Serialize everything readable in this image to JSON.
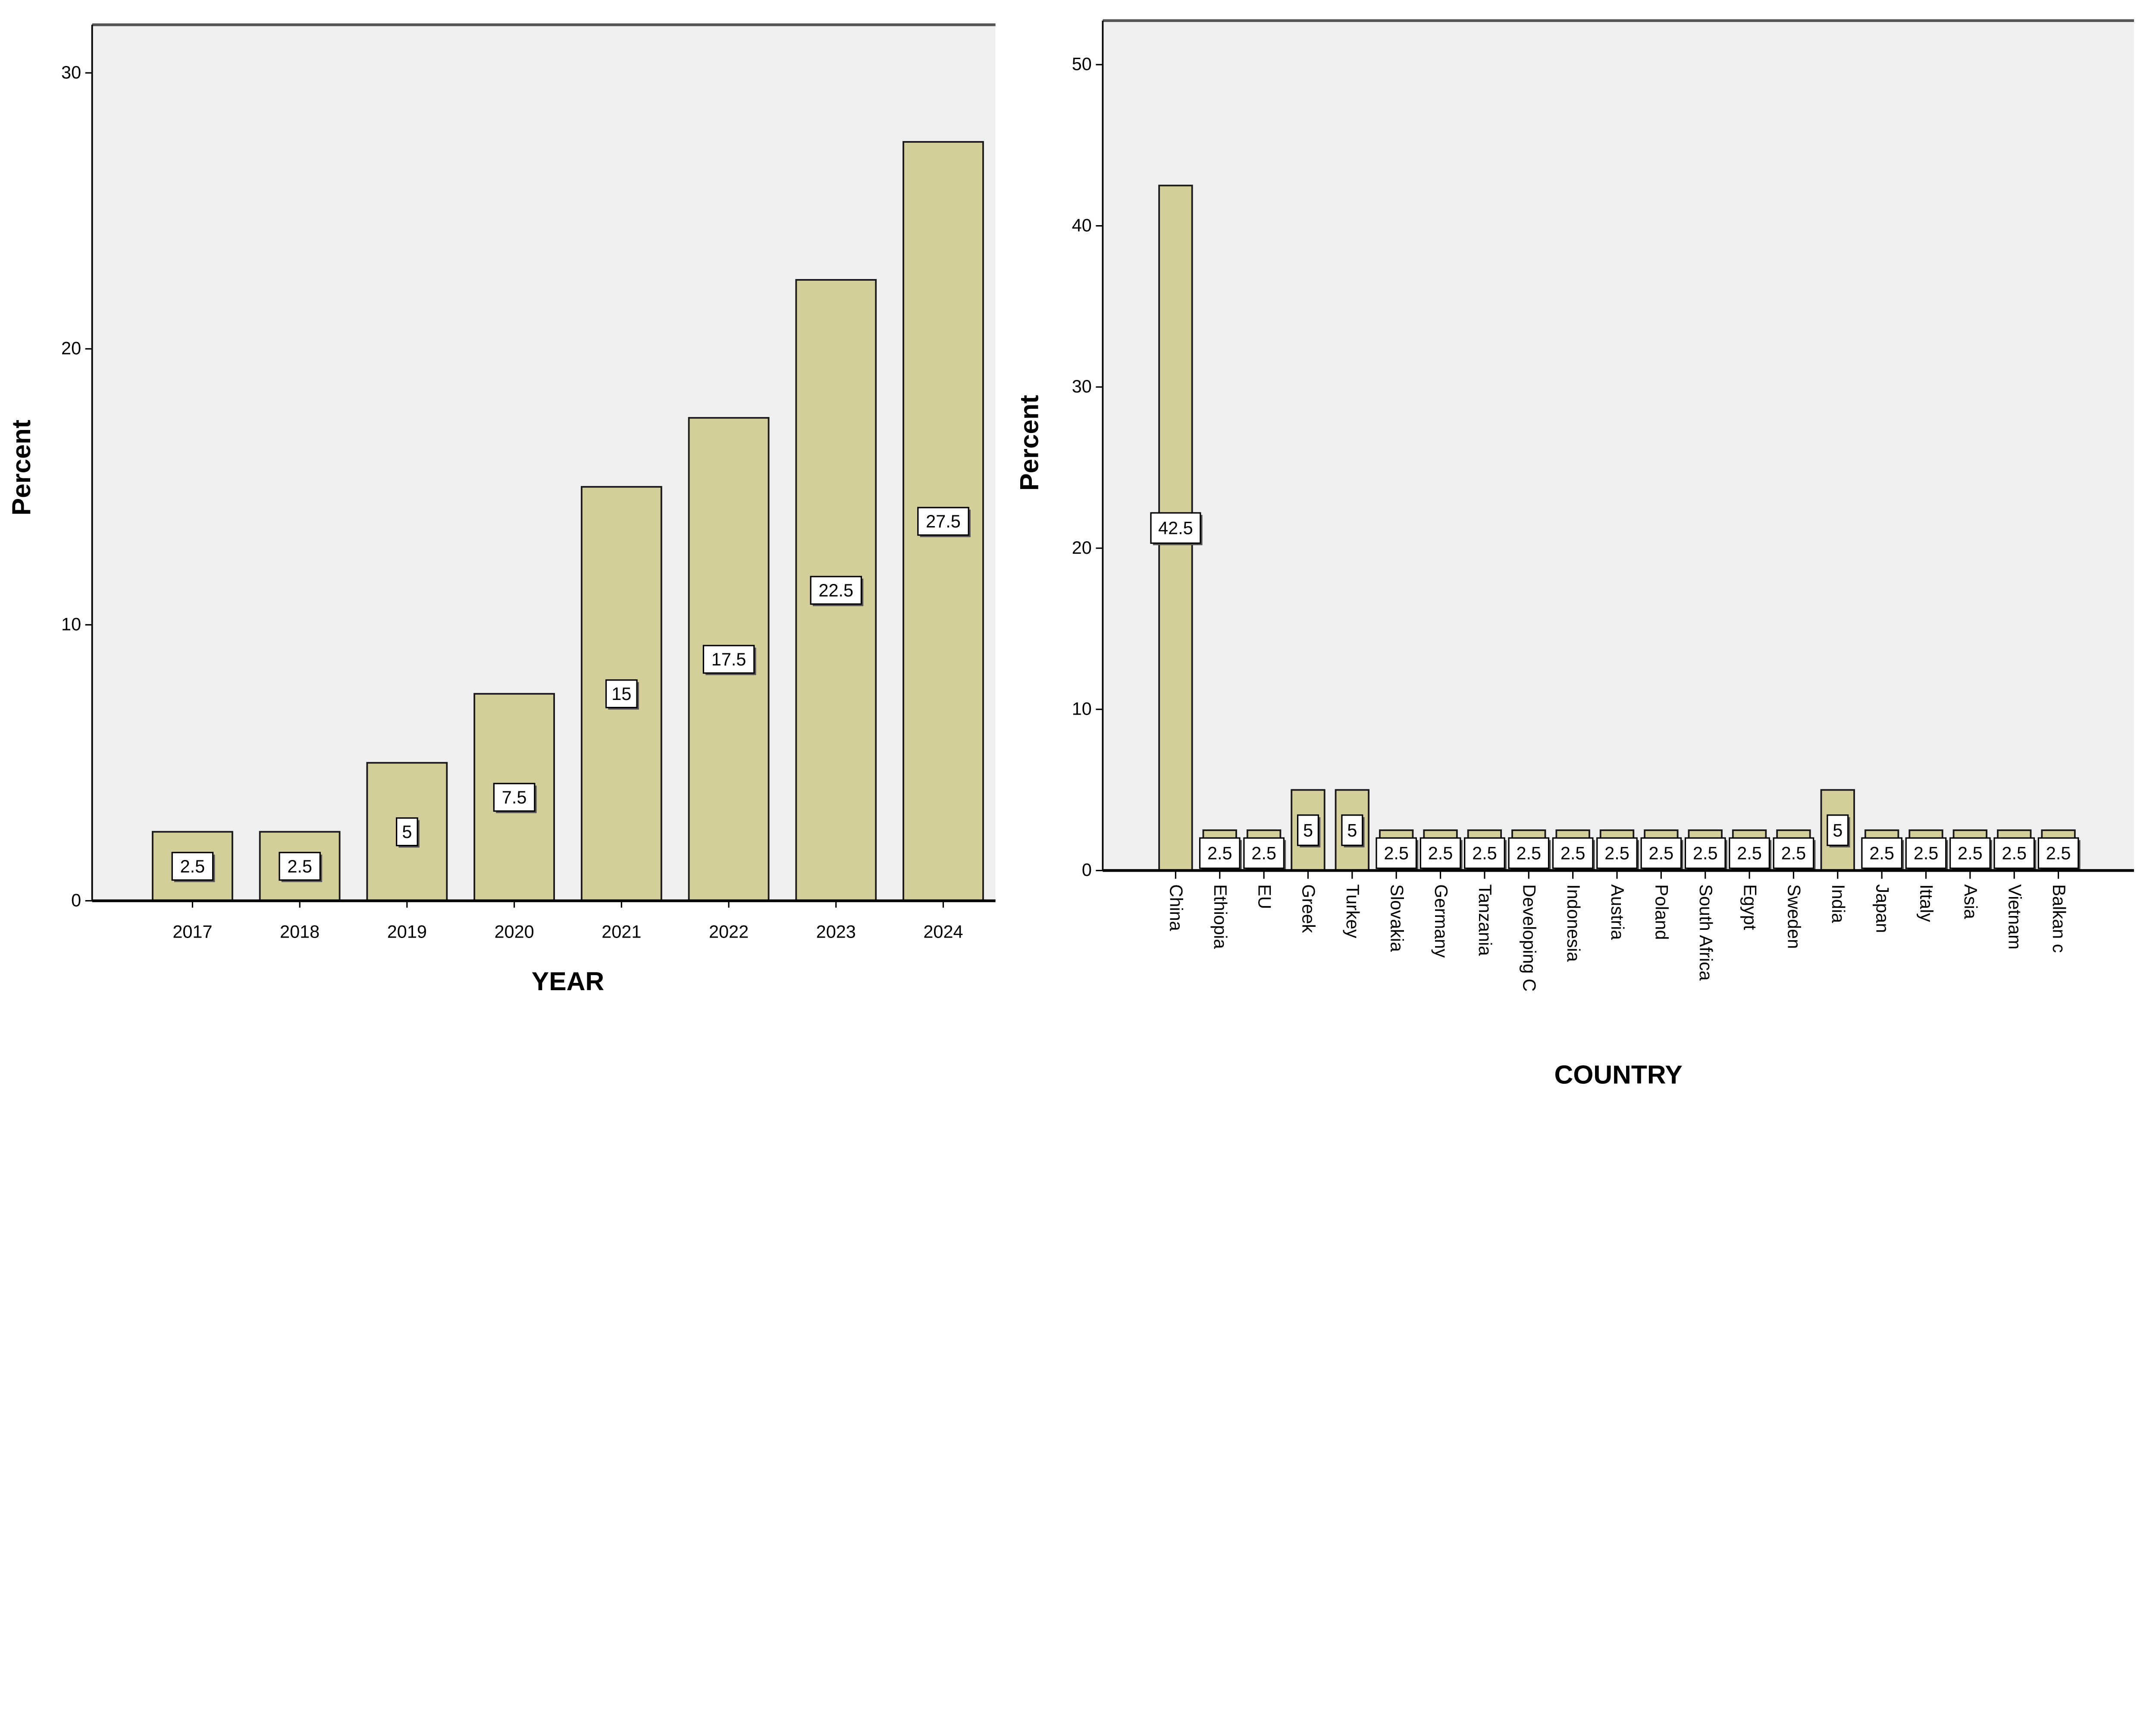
{
  "colors": {
    "bar": "#d3ce9a",
    "plot_background": "#f0f0f0",
    "bar_outline": "#1a1a1a"
  },
  "chart_data": [
    {
      "type": "bar",
      "xlabel": "YEAR",
      "ylabel": "Percent",
      "ylim": [
        0,
        30
      ],
      "yticks": [
        "0",
        "10",
        "20",
        "30"
      ],
      "categories": [
        "2017",
        "2018",
        "2019",
        "2020",
        "2021",
        "2022",
        "2023",
        "2024"
      ],
      "values": [
        2.5,
        2.5,
        5,
        7.5,
        15,
        17.5,
        22.5,
        27.5
      ],
      "data_labels": [
        "2.5",
        "2.5",
        "5",
        "7.5",
        "15",
        "17.5",
        "22.5",
        "27.5"
      ],
      "grid": false
    },
    {
      "type": "bar",
      "xlabel": "COUNTRY",
      "ylabel": "Percent",
      "ylim": [
        0,
        50
      ],
      "yticks": [
        "0",
        "10",
        "20",
        "30",
        "40",
        "50"
      ],
      "categories": [
        "China",
        "Ethiopia",
        "EU",
        "Greek",
        "Turkey",
        "Slovakia",
        "Germany",
        "Tanzania",
        "Developing C",
        "Indonesia",
        "Austria",
        "Poland",
        "South Africa",
        "Egypt",
        "Sweden",
        "India",
        "Japan",
        "Ittaly",
        "Asia",
        "Vietnam",
        "Balkan c"
      ],
      "values": [
        42.5,
        2.5,
        2.5,
        5,
        5,
        2.5,
        2.5,
        2.5,
        2.5,
        2.5,
        2.5,
        2.5,
        2.5,
        2.5,
        2.5,
        5,
        2.5,
        2.5,
        2.5,
        2.5,
        2.5
      ],
      "data_labels": [
        "42.5",
        "2.5",
        "2.5",
        "5",
        "5",
        "2.5",
        "2.5",
        "2.5",
        "2.5",
        "2.5",
        "2.5",
        "2.5",
        "2.5",
        "2.5",
        "2.5",
        "5",
        "2.5",
        "2.5",
        "2.5",
        "2.5",
        "2.5"
      ],
      "grid": false
    }
  ]
}
